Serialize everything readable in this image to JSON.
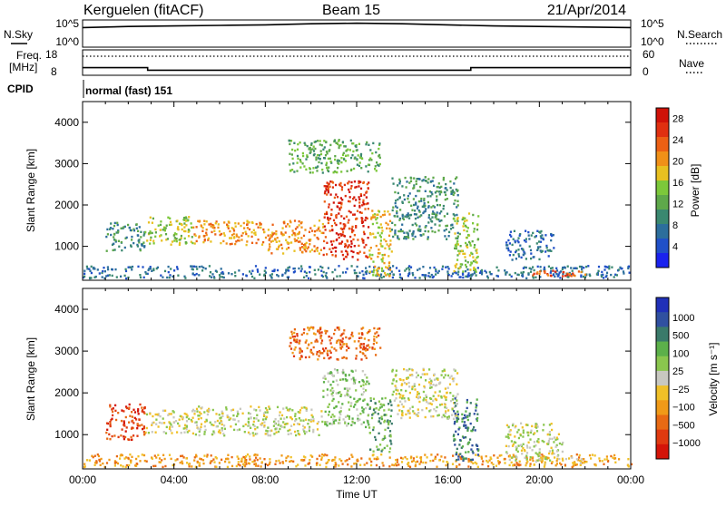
{
  "header": {
    "station": "Kerguelen (fitACF)",
    "beam": "Beam 15",
    "date": "21/Apr/2014"
  },
  "nsky_panel": {
    "left_label": "N.Sky",
    "left_ticks": [
      "10^5",
      "10^0"
    ],
    "right_label": "N.Search",
    "right_ticks": [
      "10^5",
      "10^0"
    ]
  },
  "freq_panel": {
    "left_label_1": "Freq.",
    "left_label_2": "[MHz]",
    "left_ticks": [
      "18",
      "8"
    ],
    "right_label": "Nave",
    "right_ticks": [
      "60",
      "0"
    ]
  },
  "cpid": {
    "label": "CPID",
    "program": "normal (fast) 151"
  },
  "colors": {
    "power_scale": [
      "#1a22ee",
      "#2050c8",
      "#2c6e9c",
      "#3a8870",
      "#5ea84a",
      "#7cc83a",
      "#e8c020",
      "#f09018",
      "#ec6014",
      "#e03010",
      "#d01208"
    ],
    "velocity_scale": [
      "#2030b8",
      "#3050a0",
      "#3a7a6a",
      "#5cb04a",
      "#8ac64e",
      "#c8c8c0",
      "#f0c028",
      "#f09a18",
      "#e86a14",
      "#e03a10",
      "#d41408"
    ]
  },
  "chart_data": [
    {
      "type": "line",
      "title": "N.Sky / N.Search",
      "x": [
        0,
        2,
        4,
        6,
        8,
        10,
        12,
        14,
        16,
        18,
        20,
        22,
        24
      ],
      "series": [
        {
          "name": "N.Sky",
          "values": [
            3.6,
            3.8,
            3.9,
            4.0,
            4.1,
            4.3,
            4.4,
            4.3,
            4.1,
            3.9,
            3.8,
            3.7,
            3.6
          ]
        }
      ],
      "ylim": [
        0,
        5
      ]
    },
    {
      "type": "line",
      "title": "Frequency / Nave",
      "x": [
        0,
        2.85,
        2.85,
        17.0,
        17.0,
        24
      ],
      "series": [
        {
          "name": "Freq.",
          "values": [
            11.0,
            11.0,
            10.0,
            10.0,
            11.0,
            11.0
          ]
        }
      ],
      "ylim": [
        8,
        18
      ],
      "y2lim": [
        0,
        60
      ]
    },
    {
      "type": "heatmap",
      "xlabel": "",
      "ylabel": "Slant Range [km]",
      "xlim": [
        0,
        24
      ],
      "ylim": [
        180,
        4500
      ],
      "yticks": [
        1000,
        2000,
        3000,
        4000
      ],
      "colorbar_label": "Power [dB]",
      "colorbar_ticks": [
        4,
        8,
        12,
        16,
        20,
        24,
        28
      ],
      "colorbar_range": [
        0,
        30
      ],
      "regions": [
        {
          "x0": 0.0,
          "x1": 24.0,
          "y0": 250,
          "y1": 550,
          "level": 6
        },
        {
          "x0": 1.0,
          "x1": 2.7,
          "y0": 900,
          "y1": 1600,
          "level": 9
        },
        {
          "x0": 2.7,
          "x1": 4.8,
          "y0": 1050,
          "y1": 1750,
          "level": 15
        },
        {
          "x0": 4.8,
          "x1": 8.0,
          "y0": 1050,
          "y1": 1650,
          "level": 20
        },
        {
          "x0": 8.0,
          "x1": 10.5,
          "y0": 850,
          "y1": 1650,
          "level": 22
        },
        {
          "x0": 10.5,
          "x1": 12.5,
          "y0": 700,
          "y1": 2600,
          "level": 26
        },
        {
          "x0": 12.5,
          "x1": 13.5,
          "y0": 300,
          "y1": 1900,
          "level": 18
        },
        {
          "x0": 13.5,
          "x1": 16.4,
          "y0": 1200,
          "y1": 2700,
          "level": 8
        },
        {
          "x0": 9.0,
          "x1": 13.0,
          "y0": 2800,
          "y1": 3600,
          "level": 12
        },
        {
          "x0": 16.2,
          "x1": 17.3,
          "y0": 400,
          "y1": 1900,
          "level": 14
        },
        {
          "x0": 18.5,
          "x1": 20.6,
          "y0": 700,
          "y1": 1400,
          "level": 7
        },
        {
          "x0": 19.6,
          "x1": 22.0,
          "y0": 300,
          "y1": 450,
          "level": 25
        }
      ]
    },
    {
      "type": "heatmap",
      "xlabel": "Time UT",
      "ylabel": "Slant Range [km]",
      "xlim": [
        0,
        24
      ],
      "ylim": [
        180,
        4500
      ],
      "xticks": [
        "00:00",
        "04:00",
        "08:00",
        "12:00",
        "16:00",
        "20:00",
        "00:00"
      ],
      "yticks": [
        1000,
        2000,
        3000,
        4000
      ],
      "colorbar_label": "Velocity [m s⁻¹]",
      "colorbar_ticks": [
        "1000",
        "500",
        "100",
        "25",
        "−25",
        "−100",
        "−500",
        "−1000"
      ],
      "regions": [
        {
          "x0": 0.0,
          "x1": 24.0,
          "y0": 250,
          "y1": 550,
          "level": 7
        },
        {
          "x0": 1.0,
          "x1": 2.7,
          "y0": 900,
          "y1": 1750,
          "level": 9
        },
        {
          "x0": 2.7,
          "x1": 4.8,
          "y0": 1050,
          "y1": 1600,
          "level": 5
        },
        {
          "x0": 4.8,
          "x1": 10.5,
          "y0": 1000,
          "y1": 1700,
          "level": 5
        },
        {
          "x0": 10.5,
          "x1": 12.5,
          "y0": 1200,
          "y1": 2600,
          "level": 4
        },
        {
          "x0": 12.5,
          "x1": 13.5,
          "y0": 600,
          "y1": 1900,
          "level": 3
        },
        {
          "x0": 13.5,
          "x1": 16.4,
          "y0": 1400,
          "y1": 2600,
          "level": 5
        },
        {
          "x0": 9.0,
          "x1": 13.0,
          "y0": 2800,
          "y1": 3600,
          "level": 8
        },
        {
          "x0": 16.2,
          "x1": 17.3,
          "y0": 400,
          "y1": 1900,
          "level": 2
        },
        {
          "x0": 18.5,
          "x1": 21.0,
          "y0": 400,
          "y1": 1300,
          "level": 5
        },
        {
          "x0": 19.6,
          "x1": 22.5,
          "y0": 300,
          "y1": 480,
          "level": 6
        }
      ]
    }
  ]
}
